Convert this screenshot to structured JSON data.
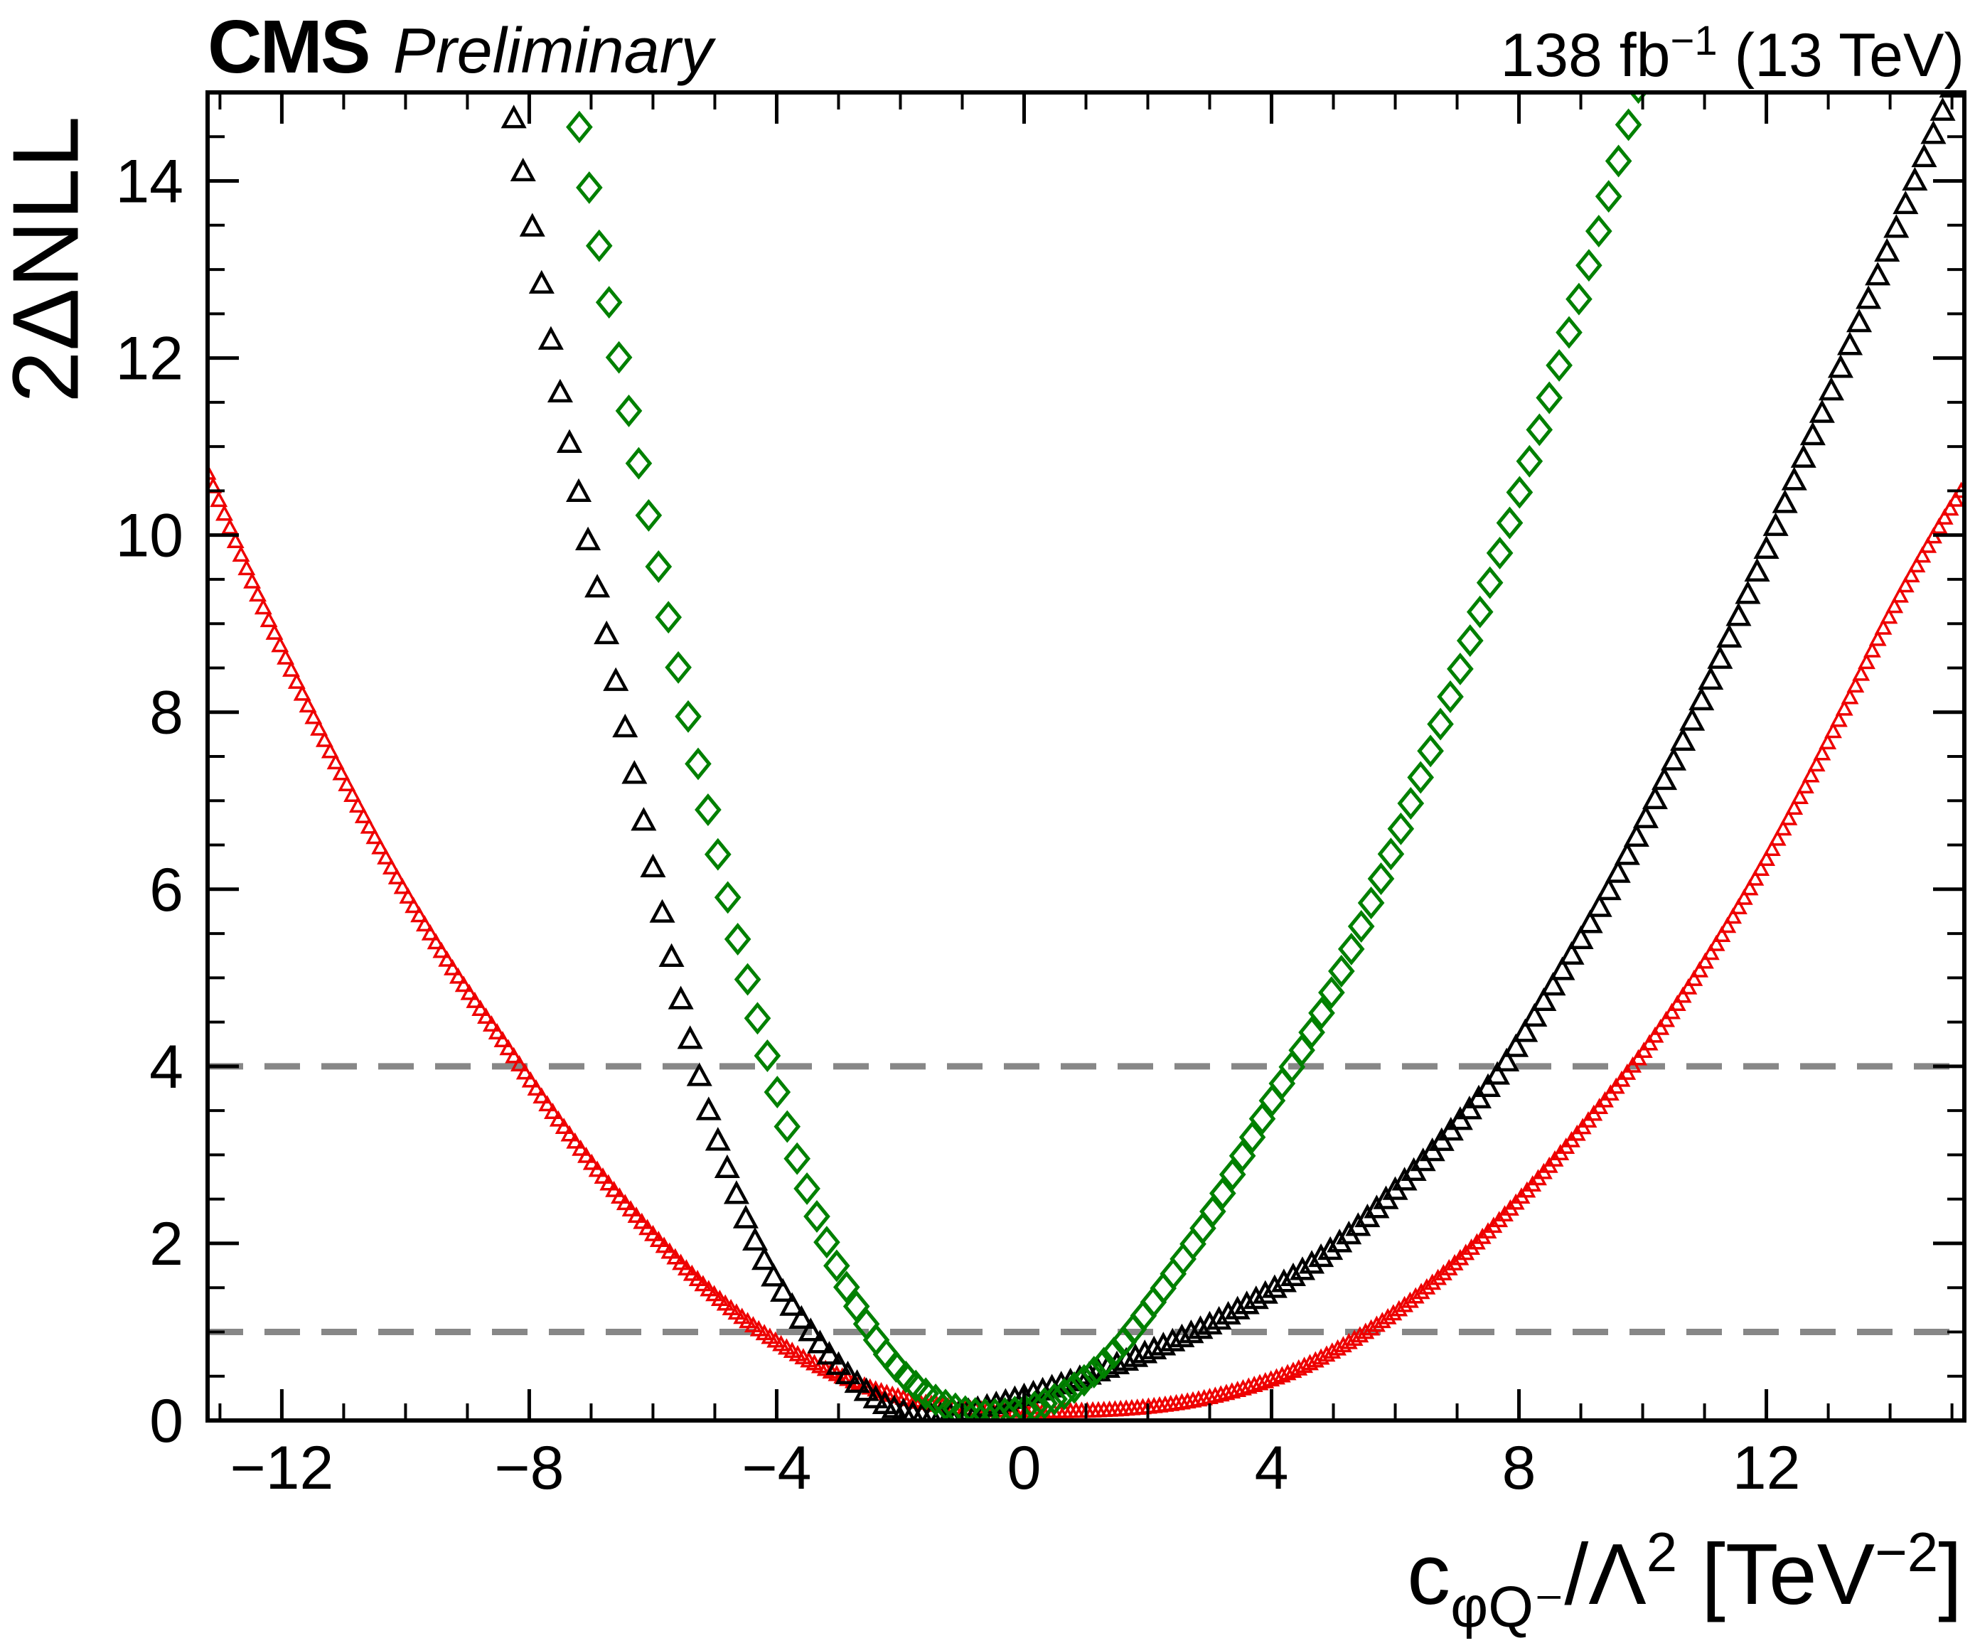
{
  "header": {
    "experiment": "CMS",
    "status": "Preliminary",
    "lumi_prefix": "138 fb",
    "lumi_sup": "−1",
    "lumi_suffix": " (13 TeV)"
  },
  "axes": {
    "x_title": {
      "pre": "c",
      "sub": "φQ⁻",
      "mid": "/Λ",
      "sup": "2",
      "unit_pre": " [TeV",
      "unit_sup": "−2",
      "unit_post": "]"
    }
  },
  "chart_data": {
    "type": "scatter",
    "title": "",
    "xlabel": "c_φQ⁻/Λ² [TeV⁻²]",
    "ylabel": "2ΔNLL",
    "xlim": [
      -13.2,
      15.2
    ],
    "ylim": [
      0,
      15
    ],
    "grid": false,
    "legend": "none",
    "x_minor_step": 1,
    "y_minor_step": 0.5,
    "x_ticks": [
      {
        "v": -12,
        "label": "−12"
      },
      {
        "v": -8,
        "label": "−8"
      },
      {
        "v": -4,
        "label": "−4"
      },
      {
        "v": 0,
        "label": "0"
      },
      {
        "v": 4,
        "label": "4"
      },
      {
        "v": 8,
        "label": "8"
      },
      {
        "v": 12,
        "label": "12"
      }
    ],
    "y_ticks": [
      {
        "v": 0,
        "label": "0"
      },
      {
        "v": 2,
        "label": "2"
      },
      {
        "v": 4,
        "label": "4"
      },
      {
        "v": 6,
        "label": "6"
      },
      {
        "v": 8,
        "label": "8"
      },
      {
        "v": 10,
        "label": "10"
      },
      {
        "v": 12,
        "label": "12"
      },
      {
        "v": 14,
        "label": "14"
      }
    ],
    "hlines": [
      1,
      4
    ],
    "hline_color": "#878787",
    "series": [
      {
        "name": "red-triangles",
        "marker": "triangle",
        "color": "#ee0000",
        "size": 10,
        "stroke": 3.5,
        "step": 0.09,
        "points": [
          [
            -13.2,
            10.7
          ],
          [
            -12.4,
            9.34
          ],
          [
            -11.6,
            8.1
          ],
          [
            -10.8,
            6.98
          ],
          [
            -10.0,
            5.96
          ],
          [
            -9.2,
            5.06
          ],
          [
            -8.4,
            4.26
          ],
          [
            -7.6,
            3.46
          ],
          [
            -6.8,
            2.74
          ],
          [
            -6.0,
            2.1
          ],
          [
            -5.2,
            1.54
          ],
          [
            -4.4,
            1.08
          ],
          [
            -3.6,
            0.72
          ],
          [
            -2.8,
            0.45
          ],
          [
            -2.0,
            0.26
          ],
          [
            -1.2,
            0.15
          ],
          [
            -0.4,
            0.11
          ],
          [
            0.4,
            0.1
          ],
          [
            1.2,
            0.11
          ],
          [
            2.0,
            0.15
          ],
          [
            2.8,
            0.23
          ],
          [
            3.6,
            0.37
          ],
          [
            4.4,
            0.57
          ],
          [
            5.2,
            0.86
          ],
          [
            6.0,
            1.22
          ],
          [
            6.8,
            1.67
          ],
          [
            7.6,
            2.2
          ],
          [
            8.4,
            2.8
          ],
          [
            9.2,
            3.45
          ],
          [
            10.0,
            4.15
          ],
          [
            10.8,
            4.95
          ],
          [
            11.6,
            5.85
          ],
          [
            12.4,
            6.85
          ],
          [
            13.2,
            7.95
          ],
          [
            14.0,
            9.1
          ],
          [
            14.8,
            10.1
          ],
          [
            15.2,
            10.55
          ]
        ]
      },
      {
        "name": "black-triangles",
        "marker": "triangle",
        "color": "#000000",
        "size": 15,
        "stroke": 4.5,
        "step": 0.15,
        "points": [
          [
            -8.4,
            15.3
          ],
          [
            -8.05,
            13.9
          ],
          [
            -7.6,
            12.0
          ],
          [
            -7.15,
            10.3
          ],
          [
            -6.7,
            8.7
          ],
          [
            -6.3,
            7.3
          ],
          [
            -5.9,
            5.9
          ],
          [
            -5.5,
            4.6
          ],
          [
            -5.1,
            3.5
          ],
          [
            -4.7,
            2.65
          ],
          [
            -4.3,
            1.95
          ],
          [
            -3.9,
            1.45
          ],
          [
            -3.5,
            1.05
          ],
          [
            -3.1,
            0.7
          ],
          [
            -2.7,
            0.42
          ],
          [
            -2.3,
            0.2
          ],
          [
            -1.9,
            0.09
          ],
          [
            -1.5,
            0.05
          ],
          [
            -1.0,
            0.09
          ],
          [
            -0.5,
            0.17
          ],
          [
            0.0,
            0.27
          ],
          [
            0.5,
            0.38
          ],
          [
            1.0,
            0.5
          ],
          [
            1.5,
            0.63
          ],
          [
            2.0,
            0.77
          ],
          [
            2.5,
            0.92
          ],
          [
            3.0,
            1.08
          ],
          [
            3.5,
            1.27
          ],
          [
            4.0,
            1.47
          ],
          [
            5.0,
            1.95
          ],
          [
            6.0,
            2.6
          ],
          [
            7.0,
            3.35
          ],
          [
            7.7,
            3.95
          ],
          [
            8.5,
            4.85
          ],
          [
            9.5,
            6.05
          ],
          [
            10.5,
            7.45
          ],
          [
            11.5,
            9.0
          ],
          [
            12.5,
            10.7
          ],
          [
            13.5,
            12.4
          ],
          [
            14.4,
            14.0
          ],
          [
            15.2,
            15.4
          ]
        ]
      },
      {
        "name": "green-diamonds",
        "marker": "diamond",
        "color": "#008000",
        "size": 19,
        "stroke": 5,
        "step": 0.16,
        "points": [
          [
            -7.35,
            15.3
          ],
          [
            -7.0,
            13.8
          ],
          [
            -6.6,
            12.2
          ],
          [
            -6.2,
            10.7
          ],
          [
            -5.8,
            9.25
          ],
          [
            -5.4,
            7.85
          ],
          [
            -5.0,
            6.55
          ],
          [
            -4.6,
            5.35
          ],
          [
            -4.2,
            4.25
          ],
          [
            -3.8,
            3.25
          ],
          [
            -3.4,
            2.4
          ],
          [
            -3.0,
            1.7
          ],
          [
            -2.6,
            1.15
          ],
          [
            -2.2,
            0.72
          ],
          [
            -1.8,
            0.42
          ],
          [
            -1.4,
            0.22
          ],
          [
            -1.0,
            0.11
          ],
          [
            -0.6,
            0.07
          ],
          [
            -0.2,
            0.09
          ],
          [
            0.2,
            0.16
          ],
          [
            0.6,
            0.28
          ],
          [
            1.0,
            0.47
          ],
          [
            1.5,
            0.8
          ],
          [
            2.0,
            1.25
          ],
          [
            2.5,
            1.75
          ],
          [
            3.0,
            2.3
          ],
          [
            3.5,
            2.95
          ],
          [
            4.0,
            3.6
          ],
          [
            4.7,
            4.45
          ],
          [
            5.4,
            5.5
          ],
          [
            6.1,
            6.7
          ],
          [
            6.8,
            8.0
          ],
          [
            7.5,
            9.4
          ],
          [
            8.2,
            10.9
          ],
          [
            8.9,
            12.5
          ],
          [
            9.6,
            14.2
          ],
          [
            10.1,
            15.5
          ]
        ]
      }
    ]
  }
}
